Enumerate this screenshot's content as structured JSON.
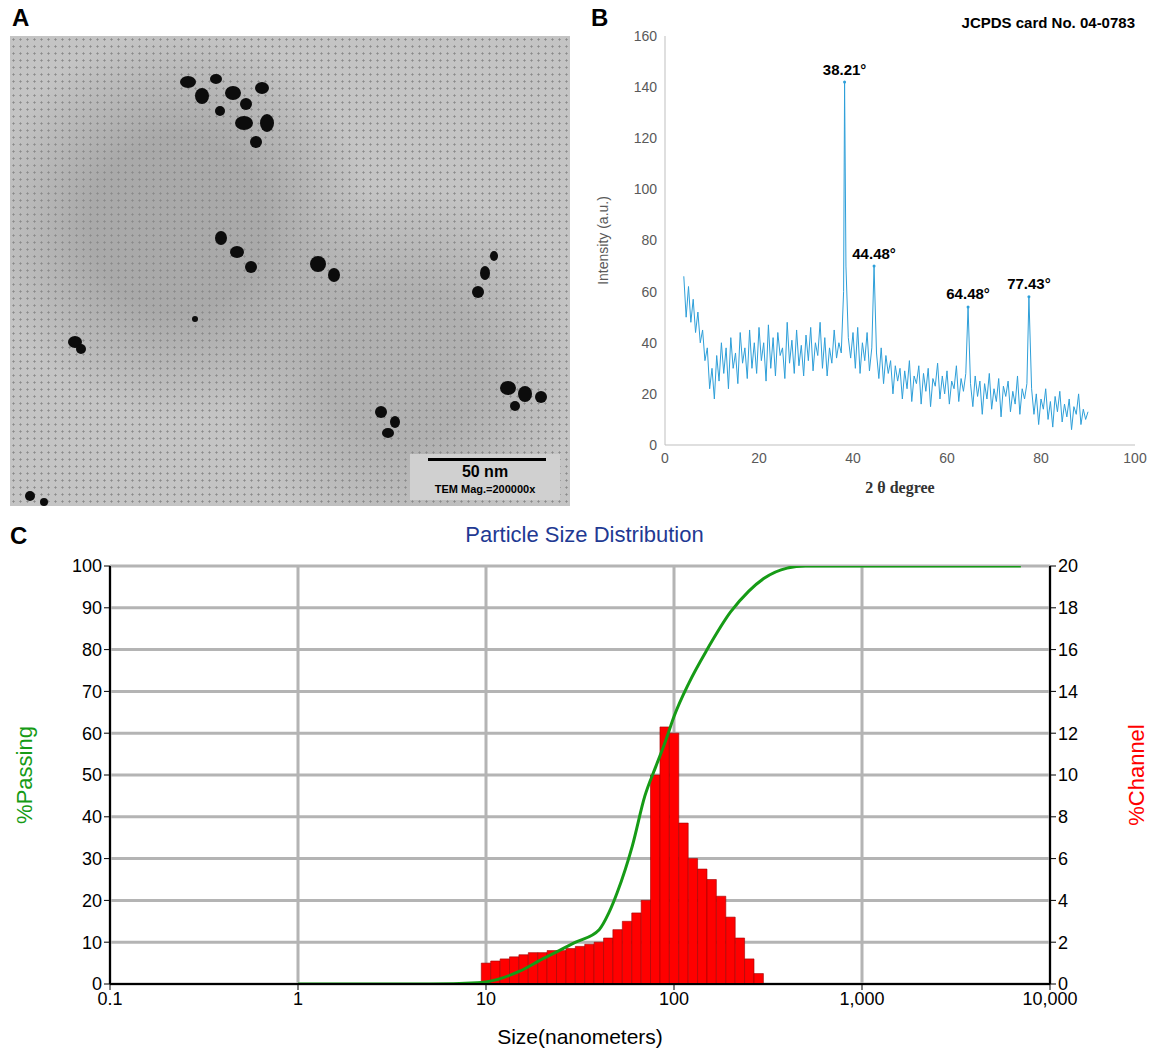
{
  "chart_data": [
    {
      "type": "image",
      "label": "A",
      "annotations": [
        "50 nm",
        "TEM Mag.=200000x"
      ]
    },
    {
      "type": "line",
      "label": "B",
      "color": "#2e9fd9",
      "grid": false,
      "x_label": "2 θ degree",
      "y_label": "Intensity (a.u.)",
      "xlim": [
        0,
        100
      ],
      "xticks": [
        0,
        20,
        40,
        60,
        80,
        100
      ],
      "ylim": [
        0,
        160
      ],
      "yticks": [
        0,
        20,
        40,
        60,
        80,
        100,
        120,
        140,
        160
      ],
      "annotations": [
        {
          "text": "JCPDS card No. 04-0783"
        },
        {
          "text": "38.21°",
          "x": 38.21
        },
        {
          "text": "44.48°",
          "x": 44.48
        },
        {
          "text": "64.48°",
          "x": 64.48
        },
        {
          "text": "77.43°",
          "x": 77.43
        }
      ],
      "x": [
        4,
        4.5,
        5,
        5.5,
        6,
        6.5,
        7,
        7.5,
        8,
        8.5,
        9,
        9.5,
        10,
        10.5,
        11,
        11.5,
        12,
        12.5,
        13,
        13.5,
        14,
        14.5,
        15,
        15.5,
        16,
        16.5,
        17,
        17.5,
        18,
        18.5,
        19,
        19.5,
        20,
        20.5,
        21,
        21.5,
        22,
        22.5,
        23,
        23.5,
        24,
        24.5,
        25,
        25.5,
        26,
        26.5,
        27,
        27.5,
        28,
        28.5,
        29,
        29.5,
        30,
        30.5,
        31,
        31.5,
        32,
        32.5,
        33,
        33.5,
        34,
        34.5,
        35,
        35.5,
        36,
        36.5,
        37,
        37.5,
        38,
        38.21,
        38.5,
        39,
        39.5,
        40,
        40.5,
        41,
        41.5,
        42,
        42.5,
        43,
        43.5,
        44,
        44.48,
        45,
        45.5,
        46,
        46.5,
        47,
        47.5,
        48,
        48.5,
        49,
        49.5,
        50,
        50.5,
        51,
        51.5,
        52,
        52.5,
        53,
        53.5,
        54,
        54.5,
        55,
        55.5,
        56,
        56.5,
        57,
        57.5,
        58,
        58.5,
        59,
        59.5,
        60,
        60.5,
        61,
        61.5,
        62,
        62.5,
        63,
        63.5,
        64,
        64.48,
        65,
        65.5,
        66,
        66.5,
        67,
        67.5,
        68,
        68.5,
        69,
        69.5,
        70,
        70.5,
        71,
        71.5,
        72,
        72.5,
        73,
        73.5,
        74,
        74.5,
        75,
        75.5,
        76,
        76.5,
        77,
        77.43,
        78,
        78.5,
        79,
        79.5,
        80,
        80.5,
        81,
        81.5,
        82,
        82.5,
        83,
        83.5,
        84,
        84.5,
        85,
        85.5,
        86,
        86.5,
        87,
        87.5,
        88,
        88.5,
        89,
        89.5,
        90
      ],
      "values": [
        66,
        50,
        62,
        48,
        57,
        44,
        52,
        40,
        45,
        33,
        38,
        22,
        30,
        18,
        35,
        25,
        40,
        28,
        38,
        22,
        42,
        30,
        36,
        24,
        44,
        32,
        38,
        26,
        45,
        30,
        40,
        28,
        46,
        33,
        40,
        25,
        47,
        30,
        42,
        27,
        44,
        35,
        38,
        26,
        48,
        32,
        41,
        28,
        45,
        31,
        39,
        27,
        43,
        33,
        46,
        29,
        40,
        35,
        48,
        30,
        42,
        27,
        38,
        32,
        45,
        34,
        40,
        36,
        60,
        142,
        70,
        42,
        34,
        44,
        30,
        46,
        28,
        40,
        33,
        44,
        29,
        38,
        70,
        36,
        26,
        38,
        24,
        35,
        28,
        33,
        20,
        31,
        25,
        30,
        18,
        29,
        22,
        33,
        17,
        27,
        24,
        31,
        16,
        28,
        21,
        30,
        15,
        26,
        23,
        32,
        18,
        27,
        20,
        29,
        16,
        25,
        22,
        31,
        17,
        26,
        21,
        28,
        54,
        24,
        15,
        27,
        19,
        25,
        12,
        24,
        18,
        28,
        14,
        22,
        17,
        26,
        11,
        23,
        19,
        25,
        13,
        21,
        16,
        27,
        12,
        22,
        18,
        24,
        58,
        22,
        12,
        20,
        8,
        18,
        14,
        22,
        10,
        17,
        7,
        19,
        13,
        21,
        9,
        16,
        11,
        18,
        6,
        15,
        12,
        20,
        8,
        14,
        10,
        13
      ]
    },
    {
      "type": "composed",
      "label": "C",
      "title": "Particle Size Distribution",
      "x_label": "Size(nanometers)",
      "y_label": "%Passing",
      "y2_label": "%Channel",
      "log": "x",
      "grid": true,
      "xlim": [
        0.1,
        10000
      ],
      "xticks": [
        0.1,
        1,
        10,
        100,
        {
          "value": 1000,
          "label": "1,000"
        },
        {
          "value": 10000,
          "label": "10,000"
        }
      ],
      "ylim": [
        0,
        100
      ],
      "yticks": [
        0,
        10,
        20,
        30,
        40,
        50,
        60,
        70,
        80,
        90,
        100
      ],
      "y2lim": [
        0,
        20
      ],
      "y2ticks": [
        0,
        2,
        4,
        6,
        8,
        10,
        12,
        14,
        16,
        18,
        20
      ],
      "series": [
        {
          "type": "histogram",
          "axis": "y2",
          "color": "#ff0000",
          "bins": [
            9.44,
            10.59,
            11.89,
            13.34,
            14.96,
            16.79,
            18.84,
            21.14,
            23.72,
            26.61,
            29.86,
            33.5,
            37.6,
            42.2,
            47.3,
            53.1,
            59.6,
            66.9,
            75.0,
            84.2,
            94.5,
            106,
            119,
            133.5,
            149.8,
            168,
            188.6,
            211.6,
            237.4,
            266.4,
            298.9
          ],
          "values": [
            1.0,
            1.1,
            1.2,
            1.3,
            1.4,
            1.5,
            1.5,
            1.6,
            1.6,
            1.7,
            1.8,
            1.9,
            2.0,
            2.2,
            2.6,
            3.0,
            3.4,
            4.0,
            10.0,
            12.3,
            12.0,
            7.7,
            6.0,
            5.5,
            5.0,
            4.2,
            3.2,
            2.2,
            1.2,
            0.5
          ]
        },
        {
          "type": "line",
          "color": "#169b16",
          "x": [
            1,
            5,
            9,
            10,
            15,
            20,
            30,
            40,
            45,
            50,
            60,
            70,
            80,
            90,
            100,
            120,
            150,
            200,
            250,
            300,
            400,
            500,
            1000,
            7000
          ],
          "values": [
            0,
            0,
            0.3,
            0.5,
            3,
            6,
            10,
            13,
            17,
            22,
            33,
            45,
            52,
            58,
            64,
            72,
            80,
            89,
            94,
            97,
            99.5,
            100,
            100,
            100
          ]
        }
      ]
    }
  ]
}
